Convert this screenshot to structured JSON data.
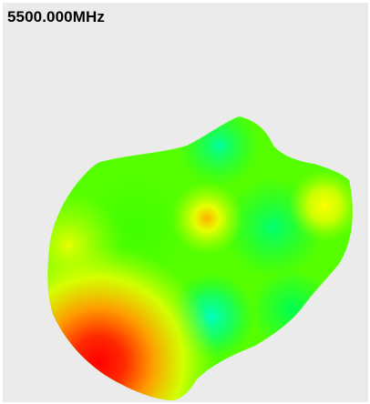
{
  "view": {
    "frequency_label": "5500.000MHz"
  },
  "plot": {
    "type": "3d-radiation-pattern",
    "colormap": [
      "#ff0000",
      "#ff8800",
      "#ffff00",
      "#00ff00",
      "#00ffc8"
    ],
    "background_color": "#ebebeb"
  }
}
